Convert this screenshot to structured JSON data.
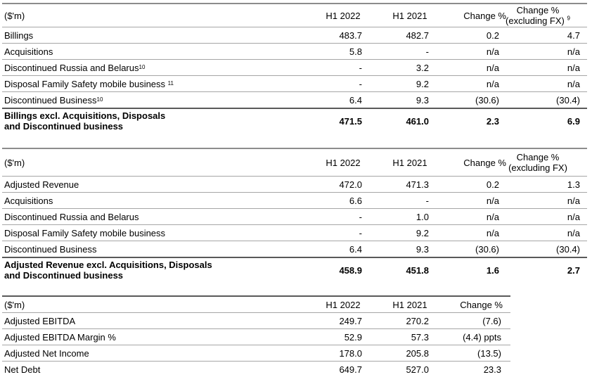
{
  "table1": {
    "header": {
      "label": "($'m)",
      "col1": "H1 2022",
      "col2": "H1 2021",
      "col3": "Change %",
      "col4_line1": "Change %",
      "col4_line2": "(excluding FX)",
      "col4_sup": "9"
    },
    "rows": [
      {
        "label": "Billings",
        "sup": "",
        "v1": "483.7",
        "v2": "482.7",
        "v3": "0.2",
        "v4": "4.7"
      },
      {
        "label": "Acquisitions",
        "sup": "",
        "v1": "5.8",
        "v2": "-",
        "v3": "n/a",
        "v4": "n/a"
      },
      {
        "label": "Discontinued Russia and Belarus",
        "sup": "10",
        "v1": "-",
        "v2": "3.2",
        "v3": "n/a",
        "v4": "n/a"
      },
      {
        "label": "Disposal Family Safety mobile business ",
        "sup": "11",
        "v1": "-",
        "v2": "9.2",
        "v3": "n/a",
        "v4": "n/a"
      },
      {
        "label": "Discontinued Business",
        "sup": "10",
        "v1": "6.4",
        "v2": "9.3",
        "v3": "(30.6)",
        "v4": "(30.4)"
      }
    ],
    "total": {
      "line1": "Billings excl. Acquisitions, Disposals",
      "line2": "and Discontinued business",
      "v1": "471.5",
      "v2": "461.0",
      "v3": "2.3",
      "v4": "6.9"
    }
  },
  "table2": {
    "header": {
      "label": "($'m)",
      "col1": "H1 2022",
      "col2": "H1 2021",
      "col3": "Change %",
      "col4_line1": "Change %",
      "col4_line2": "(excluding FX)"
    },
    "rows": [
      {
        "label": "Adjusted Revenue",
        "v1": "472.0",
        "v2": "471.3",
        "v3": "0.2",
        "v4": "1.3"
      },
      {
        "label": "Acquisitions",
        "v1": "6.6",
        "v2": "-",
        "v3": "n/a",
        "v4": "n/a"
      },
      {
        "label": "Discontinued Russia and Belarus",
        "v1": "-",
        "v2": "1.0",
        "v3": "n/a",
        "v4": "n/a"
      },
      {
        "label": "Disposal Family Safety mobile business",
        "v1": "-",
        "v2": "9.2",
        "v3": "n/a",
        "v4": "n/a"
      },
      {
        "label": "Discontinued Business",
        "v1": "6.4",
        "v2": "9.3",
        "v3": "(30.6)",
        "v4": "(30.4)"
      }
    ],
    "total": {
      "line1": "Adjusted Revenue excl. Acquisitions, Disposals",
      "line2": "and Discontinued business",
      "v1": "458.9",
      "v2": "451.8",
      "v3": "1.6",
      "v4": "2.7"
    }
  },
  "table3": {
    "header": {
      "label": "($'m)",
      "col1": "H1 2022",
      "col2": "H1 2021",
      "col3": "Change %"
    },
    "rows": [
      {
        "label": "Adjusted EBITDA",
        "v1": "249.7",
        "v2": "270.2",
        "v3": "(7.6)"
      },
      {
        "label": "Adjusted EBITDA Margin %",
        "v1": "52.9",
        "v2": "57.3",
        "v3": "(4.4) ppts"
      },
      {
        "label": "Adjusted Net Income",
        "v1": "178.0",
        "v2": "205.8",
        "v3": "(13.5)"
      },
      {
        "label": "Net Debt",
        "v1": "649.7",
        "v2": "527.0",
        "v3": "23.3"
      }
    ]
  }
}
